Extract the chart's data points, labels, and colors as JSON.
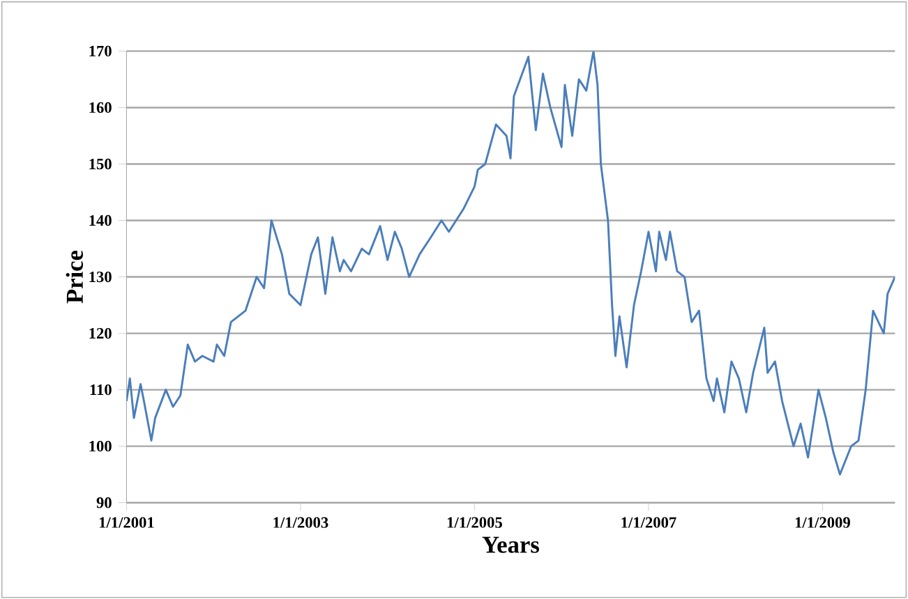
{
  "chart_data": {
    "type": "line",
    "xlabel": "Years",
    "ylabel": "Price",
    "x": [
      "2001-01-01",
      "2001-01-15",
      "2001-02-01",
      "2001-03-01",
      "2001-03-15",
      "2001-04-15",
      "2001-05-01",
      "2001-06-15",
      "2001-07-15",
      "2001-08-15",
      "2001-09-15",
      "2001-10-15",
      "2001-11-15",
      "2002-01-01",
      "2002-01-15",
      "2002-02-15",
      "2002-03-15",
      "2002-05-15",
      "2002-07-01",
      "2002-08-01",
      "2002-09-01",
      "2002-10-15",
      "2002-11-15",
      "2003-01-01",
      "2003-02-15",
      "2003-03-15",
      "2003-04-15",
      "2003-05-15",
      "2003-06-15",
      "2003-07-01",
      "2003-08-01",
      "2003-09-15",
      "2003-10-15",
      "2003-12-01",
      "2004-01-01",
      "2004-02-01",
      "2004-03-01",
      "2004-04-01",
      "2004-05-15",
      "2004-07-01",
      "2004-08-15",
      "2004-09-15",
      "2004-11-15",
      "2005-01-01",
      "2005-01-15",
      "2005-02-15",
      "2005-04-01",
      "2005-05-15",
      "2005-06-01",
      "2005-06-15",
      "2005-08-15",
      "2005-09-15",
      "2005-10-15",
      "2005-11-15",
      "2006-01-01",
      "2006-01-15",
      "2006-02-15",
      "2006-03-15",
      "2006-04-15",
      "2006-05-15",
      "2006-06-01",
      "2006-06-15",
      "2006-07-15",
      "2006-08-01",
      "2006-08-15",
      "2006-09-01",
      "2006-10-01",
      "2006-11-01",
      "2006-12-01",
      "2007-01-01",
      "2007-02-01",
      "2007-02-15",
      "2007-03-15",
      "2007-04-01",
      "2007-05-01",
      "2007-06-01",
      "2007-07-01",
      "2007-08-01",
      "2007-09-01",
      "2007-10-01",
      "2007-10-15",
      "2007-11-15",
      "2007-12-15",
      "2008-01-15",
      "2008-02-15",
      "2008-03-15",
      "2008-05-01",
      "2008-05-15",
      "2008-06-15",
      "2008-07-15",
      "2008-09-01",
      "2008-10-01",
      "2008-11-01",
      "2008-12-15",
      "2009-01-15",
      "2009-02-15",
      "2009-03-15",
      "2009-05-01",
      "2009-06-01",
      "2009-07-01",
      "2009-08-01",
      "2009-09-15",
      "2009-10-01",
      "2009-11-01"
    ],
    "series": [
      {
        "color": "#4a7ebb",
        "values": [
          108,
          112,
          105,
          111,
          108,
          101,
          105,
          110,
          107,
          109,
          118,
          115,
          116,
          115,
          118,
          116,
          122,
          124,
          130,
          128,
          140,
          134,
          127,
          125,
          134,
          137,
          127,
          137,
          131,
          133,
          131,
          135,
          134,
          139,
          133,
          138,
          135,
          130,
          134,
          137,
          140,
          138,
          142,
          146,
          149,
          150,
          157,
          155,
          151,
          162,
          169,
          156,
          166,
          160,
          153,
          164,
          155,
          165,
          163,
          170,
          164,
          150,
          140,
          125,
          116,
          123,
          114,
          125,
          131,
          138,
          131,
          138,
          133,
          138,
          131,
          130,
          122,
          124,
          112,
          108,
          112,
          106,
          115,
          112,
          106,
          113,
          121,
          113,
          115,
          108,
          100,
          104,
          98,
          110,
          105,
          99,
          95,
          100,
          101,
          110,
          124,
          120,
          127,
          130
        ]
      }
    ],
    "xlim": [
      "2001-01-01",
      "2009-11-01"
    ],
    "xticks": [
      {
        "value": "2001-01-01",
        "label": "1/1/2001"
      },
      {
        "value": "2003-01-01",
        "label": "1/1/2003"
      },
      {
        "value": "2005-01-01",
        "label": "1/1/2005"
      },
      {
        "value": "2007-01-01",
        "label": "1/1/2007"
      },
      {
        "value": "2009-01-01",
        "label": "1/1/2009"
      }
    ],
    "ylim": [
      90,
      170
    ],
    "yticks": [
      90,
      100,
      110,
      120,
      130,
      140,
      150,
      160,
      170
    ],
    "grid": "y",
    "marker": "none",
    "line_style": "solid"
  }
}
